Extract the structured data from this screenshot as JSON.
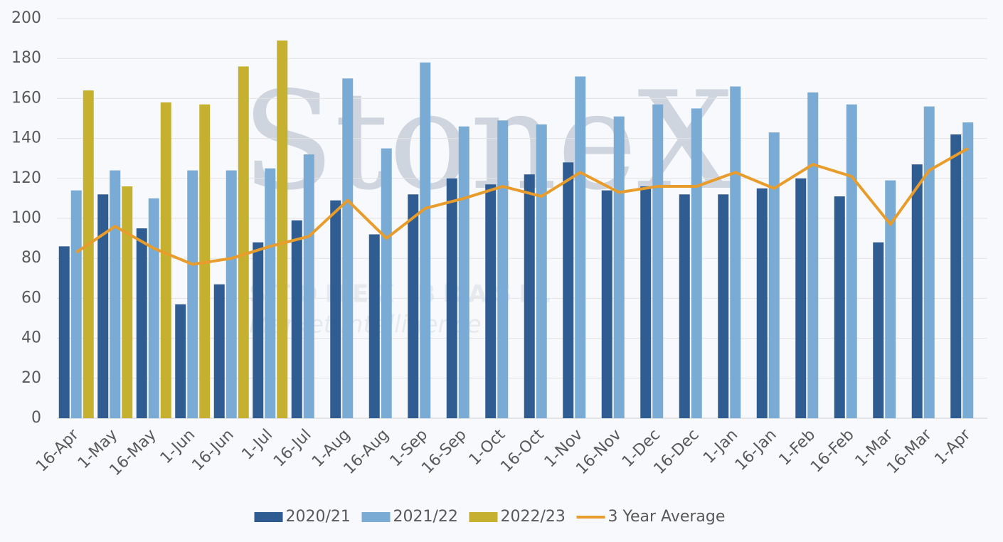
{
  "chart_data": {
    "type": "bar_line",
    "watermark": {
      "logo": "StoneX",
      "company": "STONEX BRASIL",
      "tagline": "Market Intelligence"
    },
    "categories": [
      "16-Apr",
      "1-May",
      "16-May",
      "1-Jun",
      "16-Jun",
      "1-Jul",
      "16-Jul",
      "1-Aug",
      "16-Aug",
      "1-Sep",
      "16-Sep",
      "1-Oct",
      "16-Oct",
      "1-Nov",
      "16-Nov",
      "1-Dec",
      "16-Dec",
      "1-Jan",
      "16-Jan",
      "1-Feb",
      "16-Feb",
      "1-Mar",
      "16-Mar",
      "1-Apr"
    ],
    "series": [
      {
        "name": "2020/21",
        "color": "#2f5c91",
        "kind": "bar",
        "values": [
          86,
          112,
          95,
          57,
          67,
          88,
          99,
          109,
          92,
          112,
          120,
          117,
          122,
          128,
          114,
          116,
          112,
          112,
          115,
          120,
          111,
          88,
          127,
          142
        ]
      },
      {
        "name": "2021/22",
        "color": "#7aabd4",
        "kind": "bar",
        "values": [
          114,
          124,
          110,
          124,
          124,
          125,
          132,
          170,
          135,
          178,
          146,
          149,
          147,
          171,
          151,
          157,
          155,
          166,
          143,
          163,
          157,
          119,
          156,
          148
        ]
      },
      {
        "name": "2022/23",
        "color": "#c5b12f",
        "kind": "bar",
        "values": [
          164,
          116,
          158,
          157,
          176,
          189,
          null,
          null,
          null,
          null,
          null,
          null,
          null,
          null,
          null,
          null,
          null,
          null,
          null,
          null,
          null,
          null,
          null,
          null
        ]
      },
      {
        "name": "3 Year Average",
        "color": "#e89c2b",
        "kind": "line",
        "values": [
          83,
          96,
          85,
          77,
          80,
          86,
          91,
          109,
          90,
          105,
          110,
          116,
          111,
          123,
          113,
          116,
          116,
          123,
          115,
          127,
          121,
          97,
          124,
          135
        ]
      }
    ],
    "ylim": [
      0,
      200
    ],
    "yticks": [
      0,
      20,
      40,
      60,
      80,
      100,
      120,
      140,
      160,
      180,
      200
    ],
    "grid": true,
    "legend": "bottom"
  }
}
